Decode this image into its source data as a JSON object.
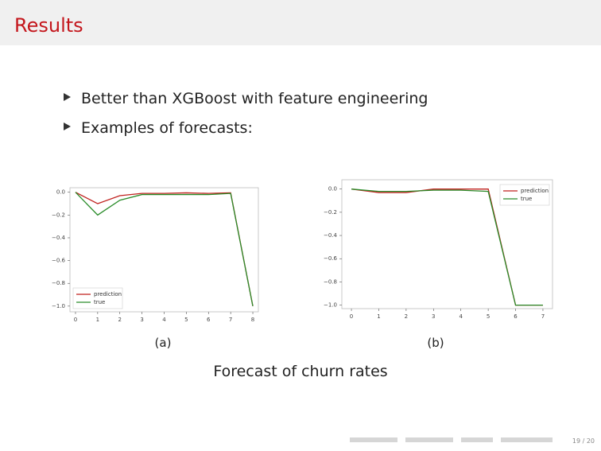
{
  "title": "Results",
  "bullets": [
    "Better than XGBoost with feature engineering",
    "Examples of forecasts:"
  ],
  "subcaptions": [
    "(a)",
    "(b)"
  ],
  "caption": "Forecast of churn rates",
  "page": "19 / 20",
  "chart_data": [
    {
      "type": "line",
      "x": [
        0,
        1,
        2,
        3,
        4,
        5,
        6,
        7,
        8
      ],
      "series": [
        {
          "name": "prediction",
          "color": "#c0221f",
          "values": [
            0,
            -0.1,
            -0.03,
            -0.01,
            -0.01,
            -0.005,
            -0.01,
            -0.005,
            -1.0
          ]
        },
        {
          "name": "true",
          "color": "#2a8c2a",
          "values": [
            0,
            -0.2,
            -0.07,
            -0.02,
            -0.02,
            -0.02,
            -0.02,
            -0.01,
            -1.0
          ]
        }
      ],
      "xlim": [
        -0.25,
        8.25
      ],
      "ylim": [
        -1.05,
        0.04
      ],
      "xticks": [
        0,
        1,
        2,
        3,
        4,
        5,
        6,
        7,
        8
      ],
      "yticks": [
        {
          "value": 0,
          "label": "0.0"
        },
        {
          "value": -0.2,
          "label": "−0.2"
        },
        {
          "value": -0.4,
          "label": "−0.4"
        },
        {
          "value": -0.6,
          "label": "−0.6"
        },
        {
          "value": -0.8,
          "label": "−0.8"
        },
        {
          "value": -1.0,
          "label": "−1.0"
        }
      ],
      "legend": "lower left"
    },
    {
      "type": "line",
      "x": [
        0,
        1,
        2,
        3,
        4,
        5,
        6,
        7
      ],
      "series": [
        {
          "name": "prediction",
          "color": "#c0221f",
          "values": [
            0,
            -0.03,
            -0.03,
            0,
            0,
            0,
            -1.0,
            -1.0
          ]
        },
        {
          "name": "true",
          "color": "#2a8c2a",
          "values": [
            0,
            -0.02,
            -0.02,
            -0.01,
            -0.01,
            -0.02,
            -1.0,
            -1.0
          ]
        }
      ],
      "xlim": [
        -0.35,
        7.35
      ],
      "ylim": [
        -1.03,
        0.08
      ],
      "xticks": [
        0,
        1,
        2,
        3,
        4,
        5,
        6,
        7
      ],
      "yticks": [
        {
          "value": 0,
          "label": "0.0"
        },
        {
          "value": -0.2,
          "label": "−0.2"
        },
        {
          "value": -0.4,
          "label": "−0.4"
        },
        {
          "value": -0.6,
          "label": "−0.6"
        },
        {
          "value": -0.8,
          "label": "−0.8"
        },
        {
          "value": -1.0,
          "label": "−1.0"
        }
      ],
      "legend": "upper right"
    }
  ]
}
